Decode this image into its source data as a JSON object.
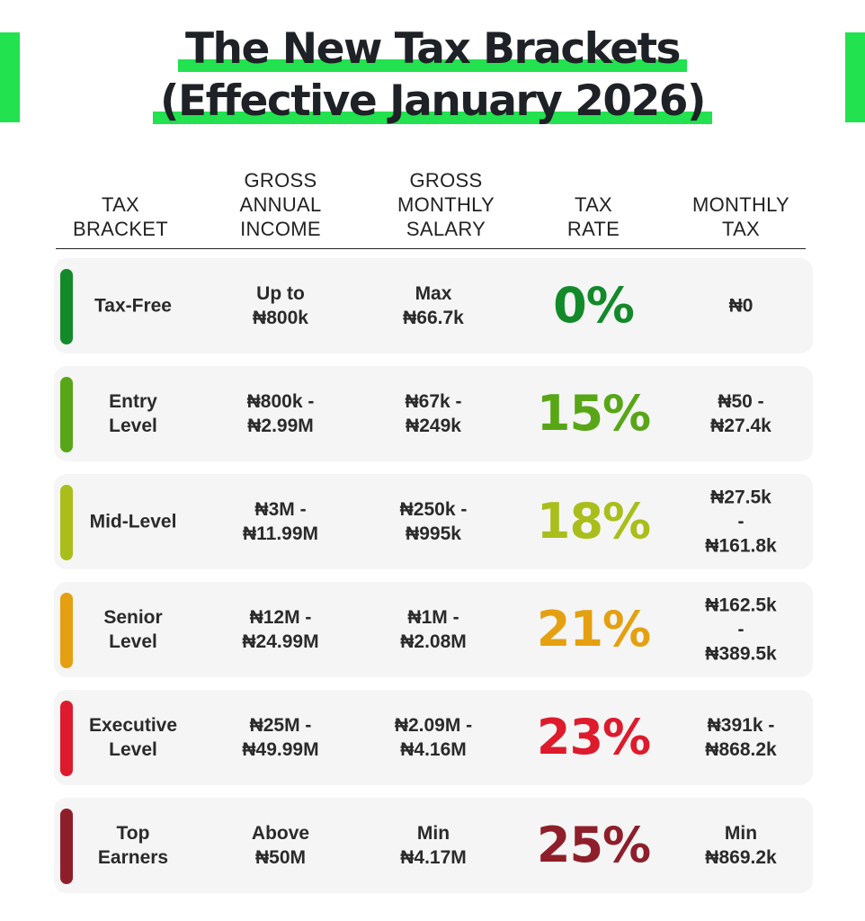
{
  "title": {
    "line1": "The New Tax Brackets",
    "line2": "(Effective January 2026)",
    "highlight_color": "#22e24f",
    "side_bar_color": "#22e24f"
  },
  "headers": {
    "bracket": "TAX\nBRACKET",
    "annual": "GROSS\nANNUAL\nINCOME",
    "monthly": "GROSS\nMONTHLY\nSALARY",
    "rate": "TAX\nRATE",
    "tax": "MONTHLY\nTAX"
  },
  "rows": [
    {
      "bracket": "Tax-Free",
      "annual": "Up to\n₦800k",
      "monthly": "Max\n₦66.7k",
      "rate": "0%",
      "tax": "₦0",
      "color": "#138a2a"
    },
    {
      "bracket": "Entry\nLevel",
      "annual": "₦800k -\n₦2.99M",
      "monthly": "₦67k -\n₦249k",
      "rate": "15%",
      "tax": "₦50 -\n₦27.4k",
      "color": "#58a617"
    },
    {
      "bracket": "Mid-Level",
      "annual": "₦3M -\n₦11.99M",
      "monthly": "₦250k -\n₦995k",
      "rate": "18%",
      "tax": "₦27.5k -\n₦161.8k",
      "color": "#a9be1a"
    },
    {
      "bracket": "Senior\nLevel",
      "annual": "₦12M -\n₦24.99M",
      "monthly": "₦1M -\n₦2.08M",
      "rate": "21%",
      "tax": "₦162.5k -\n₦389.5k",
      "color": "#e4a010"
    },
    {
      "bracket": "Executive\nLevel",
      "annual": "₦25M -\n₦49.99M",
      "monthly": "₦2.09M -\n₦4.16M",
      "rate": "23%",
      "tax": "₦391k -\n₦868.2k",
      "color": "#dd1b2c"
    },
    {
      "bracket": "Top\nEarners",
      "annual": "Above\n₦50M",
      "monthly": "Min\n₦4.17M",
      "rate": "25%",
      "tax": "Min\n₦869.2k",
      "color": "#8e1f2a"
    }
  ]
}
